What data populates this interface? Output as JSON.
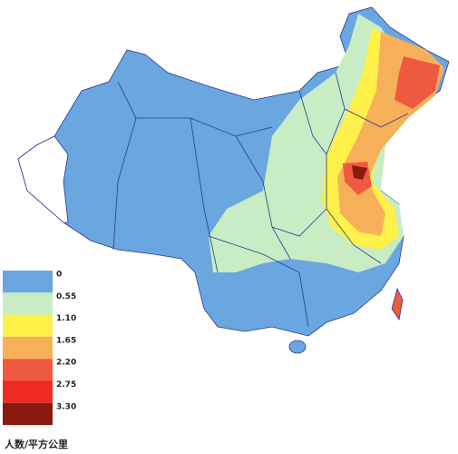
{
  "legend": {
    "title": "人数/平方公里",
    "items": [
      {
        "label": "0",
        "color": "#6aa6e0"
      },
      {
        "label": "0.55",
        "color": "#c8ecc4"
      },
      {
        "label": "1.10",
        "color": "#fff04a"
      },
      {
        "label": "1.65",
        "color": "#f7b05a"
      },
      {
        "label": "2.20",
        "color": "#ee5a40"
      },
      {
        "label": "2.75",
        "color": "#ee2a22"
      },
      {
        "label": "3.30",
        "color": "#8a1a10"
      }
    ]
  }
}
